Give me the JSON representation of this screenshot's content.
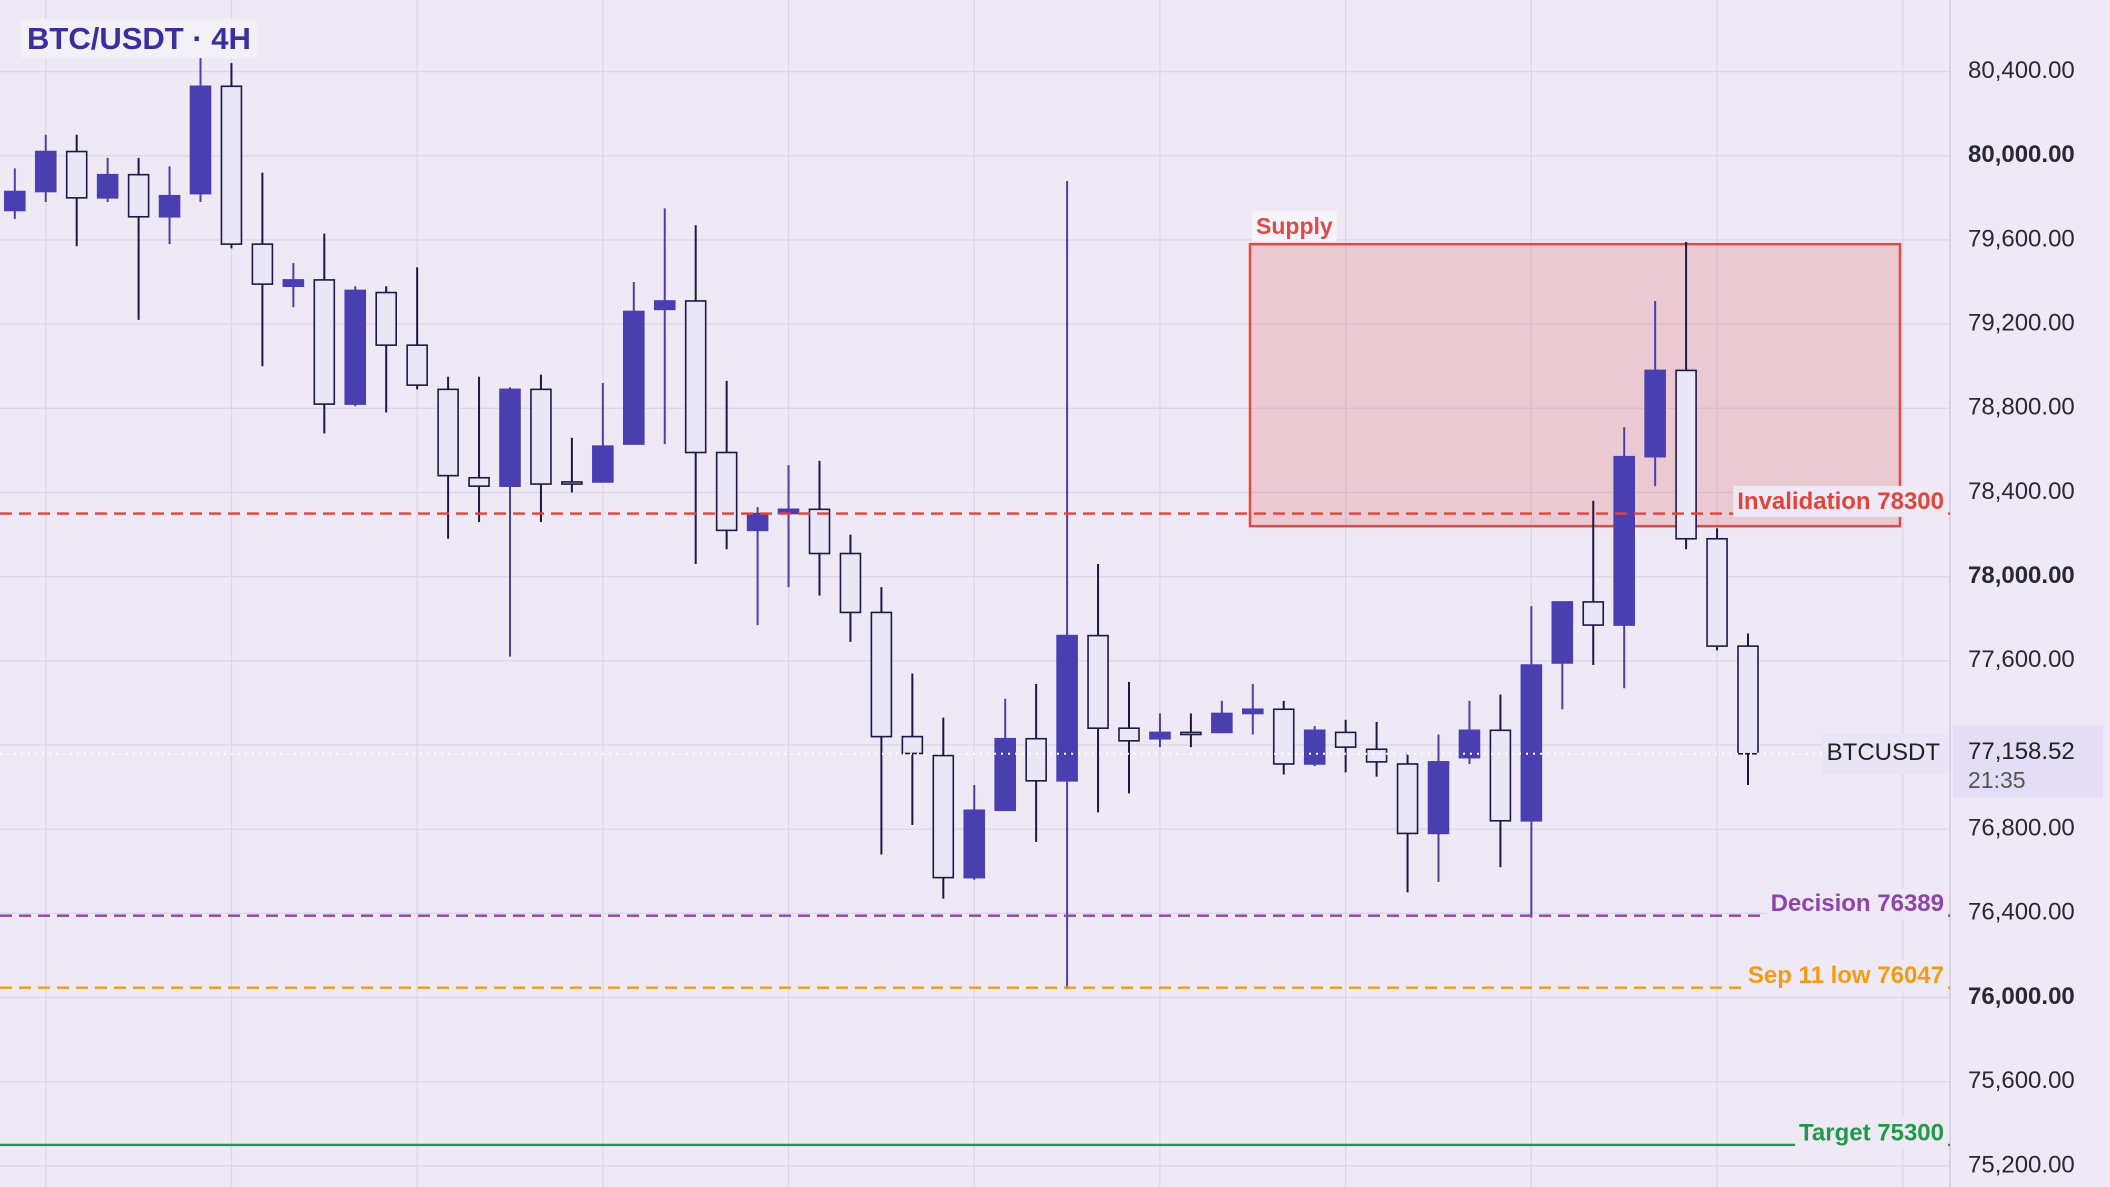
{
  "chart_data": {
    "type": "candlestick",
    "title": "BTC/USDT · 4H",
    "open": [
      79740,
      79830,
      80020,
      79800,
      79910,
      79710,
      79820,
      80330,
      79580,
      79380,
      79410,
      78820,
      79350,
      79100,
      78890,
      78470,
      78430,
      78890,
      78450,
      78450,
      78630,
      79270,
      79310,
      78590,
      78220,
      78300,
      78320,
      78110,
      77830,
      77240,
      77150,
      76570,
      76890,
      77230,
      77030,
      77720,
      77280,
      77230,
      77260,
      77260,
      77350,
      77370,
      77110,
      77260,
      77180,
      77110,
      76780,
      77140,
      77270,
      76840,
      77590,
      77880,
      77770,
      78570,
      78980,
      78180,
      77670
    ],
    "high": [
      79940,
      80100,
      80100,
      79990,
      79990,
      79950,
      80480,
      80440,
      79920,
      79490,
      79630,
      79380,
      79380,
      79470,
      78950,
      78950,
      78900,
      78960,
      78660,
      78920,
      79400,
      79750,
      79670,
      78930,
      78330,
      78530,
      78550,
      78200,
      77950,
      77540,
      77330,
      77010,
      77420,
      77490,
      79880,
      78060,
      77500,
      77350,
      77350,
      77410,
      77490,
      77410,
      77290,
      77320,
      77310,
      77160,
      77250,
      77410,
      77440,
      77860,
      77880,
      78360,
      78710,
      79310,
      79590,
      78230,
      77730
    ],
    "low": [
      79700,
      79780,
      79570,
      79780,
      79220,
      79580,
      79780,
      79560,
      79000,
      79280,
      78680,
      78810,
      78780,
      78890,
      78180,
      78260,
      77620,
      78260,
      78400,
      78450,
      78630,
      78630,
      78060,
      78130,
      77770,
      77950,
      77910,
      77690,
      76680,
      76820,
      76470,
      76560,
      76890,
      76740,
      76040,
      76880,
      76970,
      77190,
      77190,
      77260,
      77250,
      77060,
      77100,
      77070,
      77050,
      76500,
      76550,
      77110,
      76620,
      76380,
      77370,
      77580,
      77470,
      78430,
      78130,
      77650,
      77010
    ],
    "close": [
      79830,
      80020,
      79800,
      79910,
      79710,
      79810,
      80330,
      79580,
      79390,
      79410,
      78820,
      79360,
      79100,
      78910,
      78480,
      78430,
      78890,
      78440,
      78440,
      78620,
      79260,
      79310,
      78590,
      78220,
      78300,
      78320,
      78110,
      77830,
      77240,
      77160,
      76570,
      76890,
      77230,
      77030,
      77720,
      77280,
      77220,
      77260,
      77250,
      77350,
      77370,
      77110,
      77270,
      77190,
      77120,
      76780,
      77120,
      77270,
      76840,
      77580,
      77880,
      77770,
      78570,
      78980,
      78180,
      77670,
      77158.52
    ],
    "up_color": "#4a3fb0",
    "down_color": "#e9e6f6",
    "outline_color": "#1d1946",
    "ylim": [
      75100,
      80740
    ],
    "yticks": [
      {
        "value": 75200,
        "label": "75,200.00"
      },
      {
        "value": 75600,
        "label": "75,600.00"
      },
      {
        "value": 76000,
        "label": "76,000.00"
      },
      {
        "value": 76400,
        "label": "76,400.00"
      },
      {
        "value": 76800,
        "label": "76,800.00"
      },
      {
        "value": 77200,
        "label": "77,200.00"
      },
      {
        "value": 77600,
        "label": "77,600.00"
      },
      {
        "value": 78000,
        "label": "78,000.00"
      },
      {
        "value": 78400,
        "label": "78,400.00"
      },
      {
        "value": 78800,
        "label": "78,800.00"
      },
      {
        "value": 79200,
        "label": "79,200.00"
      },
      {
        "value": 79600,
        "label": "79,600.00"
      },
      {
        "value": 80000,
        "label": "80,000.00"
      },
      {
        "value": 80400,
        "label": "80,400.00"
      }
    ],
    "grid": true,
    "levels": [
      {
        "label": "Invalidation 78300",
        "value": 78300,
        "color": "#e0453b",
        "style": "dashed"
      },
      {
        "label": "Decision 76389",
        "value": 76389,
        "color": "#8e44ad",
        "style": "dashed"
      },
      {
        "label": "Sep 11 low 76047",
        "value": 76047,
        "color": "#f39c12",
        "style": "dashed"
      },
      {
        "label": "Target 75300",
        "value": 75300,
        "color": "#1e9a4a",
        "style": "solid"
      }
    ],
    "zones": [
      {
        "label": "Supply",
        "top": 79580,
        "bottom": 78240,
        "color": "#e04a44"
      }
    ],
    "last_price": {
      "symbol": "BTCUSDT",
      "value": 77158.52,
      "label": "77,158.52",
      "countdown": "21:35"
    }
  }
}
